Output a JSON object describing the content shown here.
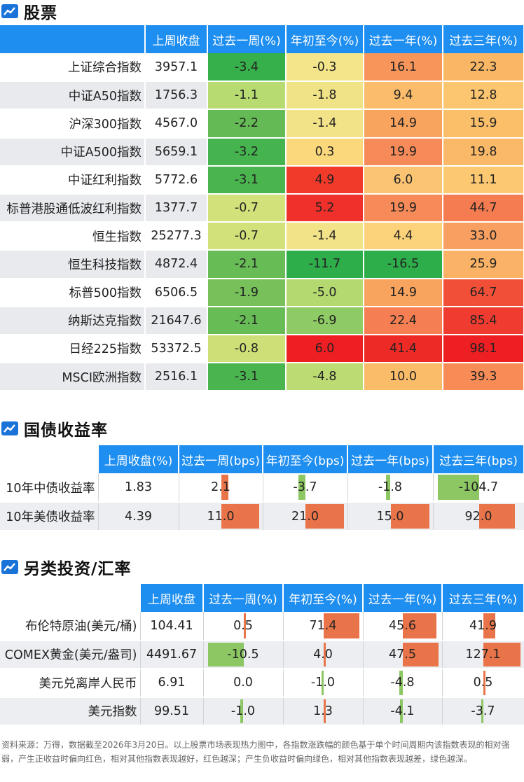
{
  "stocks": {
    "title": "股票",
    "headers": [
      "上周收盘",
      "过去一周(%)",
      "年初至今(%)",
      "过去一年(%)",
      "过去三年(%)"
    ],
    "rows": [
      {
        "name": "上证综合指数",
        "close": "3957.1",
        "w": "-3.4",
        "ytd": "-0.3",
        "y1": "16.1",
        "y3": "22.3",
        "c": [
          "#36b04b",
          "#f5e58a",
          "#f7955b",
          "#f9b766"
        ]
      },
      {
        "name": "中证A50指数",
        "close": "1756.3",
        "w": "-1.1",
        "ytd": "-1.8",
        "y1": "9.4",
        "y3": "12.8",
        "c": [
          "#b7da71",
          "#f0e286",
          "#fbbd6b",
          "#fcc570"
        ]
      },
      {
        "name": "沪深300指数",
        "close": "4567.0",
        "w": "-2.2",
        "ytd": "-1.4",
        "y1": "14.9",
        "y3": "15.9",
        "c": [
          "#64bb55",
          "#f3e388",
          "#f8a35e",
          "#fbbf6a"
        ]
      },
      {
        "name": "中证A500指数",
        "close": "5659.1",
        "w": "-3.2",
        "ytd": "0.3",
        "y1": "19.9",
        "y3": "19.8",
        "c": [
          "#45b44e",
          "#fbd87c",
          "#f68a58",
          "#fab968"
        ]
      },
      {
        "name": "中证红利指数",
        "close": "5772.6",
        "w": "-3.1",
        "ytd": "4.9",
        "y1": "6.0",
        "y3": "11.1",
        "c": [
          "#4ab54f",
          "#f23a2a",
          "#fbc473",
          "#fcc872"
        ]
      },
      {
        "name": "标普港股通低波红利指数",
        "close": "1377.7",
        "w": "-0.7",
        "ytd": "5.2",
        "y1": "19.9",
        "y3": "44.7",
        "c": [
          "#d3e17a",
          "#f0302b",
          "#f68a58",
          "#f57c51"
        ]
      },
      {
        "name": "恒生指数",
        "close": "25277.3",
        "w": "-0.7",
        "ytd": "-1.4",
        "y1": "4.4",
        "y3": "33.0",
        "c": [
          "#d3e17a",
          "#f3e388",
          "#fcd27a",
          "#f8a061"
        ]
      },
      {
        "name": "恒生科技指数",
        "close": "4872.4",
        "w": "-2.1",
        "ytd": "-11.7",
        "y1": "-16.5",
        "y3": "25.9",
        "c": [
          "#68bc56",
          "#2eae4a",
          "#2eae4a",
          "#f9b266"
        ]
      },
      {
        "name": "标普500指数",
        "close": "6506.5",
        "w": "-1.9",
        "ytd": "-5.0",
        "y1": "14.9",
        "y3": "64.7",
        "c": [
          "#77c05a",
          "#b4d970",
          "#f8a35e",
          "#f24f38"
        ]
      },
      {
        "name": "纳斯达克指数",
        "close": "21647.6",
        "w": "-2.1",
        "ytd": "-6.9",
        "y1": "22.4",
        "y3": "85.4",
        "c": [
          "#68bc56",
          "#8fcb64",
          "#f57f52",
          "#f03c30"
        ]
      },
      {
        "name": "日经225指数",
        "close": "53372.5",
        "w": "-0.8",
        "ytd": "6.0",
        "y1": "41.4",
        "y3": "98.1",
        "c": [
          "#cfdf78",
          "#ee1f23",
          "#ee2a27",
          "#ee1f23"
        ]
      },
      {
        "name": "MSCI欧洲指数",
        "close": "2516.1",
        "w": "-3.1",
        "ytd": "-4.8",
        "y1": "10.0",
        "y3": "39.3",
        "c": [
          "#4ab54f",
          "#bcdb72",
          "#fbbc6a",
          "#f78c57"
        ]
      }
    ]
  },
  "bonds": {
    "title": "国债收益率",
    "headers": [
      "上周收盘(%)",
      "过去一周(bps)",
      "年初至今(bps)",
      "过去一年(bps)",
      "过去三年(bps)"
    ],
    "rows": [
      {
        "name": "10年中债收益率",
        "close": "1.83",
        "vals": [
          "2.1",
          "-3.7",
          "-1.8",
          "-104.7"
        ]
      },
      {
        "name": "10年美债收益率",
        "close": "4.39",
        "vals": [
          "11.0",
          "21.0",
          "15.0",
          "92.0"
        ]
      }
    ]
  },
  "alt": {
    "title": "另类投资/汇率",
    "headers": [
      "上周收盘",
      "过去一周(%)",
      "年初至今(%)",
      "过去一年(%)",
      "过去三年(%)"
    ],
    "rows": [
      {
        "name": "布伦特原油(美元/桶)",
        "close": "104.41",
        "vals": [
          "0.5",
          "71.4",
          "45.6",
          "41.9"
        ]
      },
      {
        "name": "COMEX黄金(美元/盎司)",
        "close": "4491.67",
        "vals": [
          "-10.5",
          "4.0",
          "47.5",
          "127.1"
        ]
      },
      {
        "name": "美元兑离岸人民币",
        "close": "6.91",
        "vals": [
          "0.0",
          "-1.0",
          "-4.8",
          "0.5"
        ]
      },
      {
        "name": "美元指数",
        "close": "99.51",
        "vals": [
          "-1.0",
          "1.3",
          "-4.1",
          "-3.7"
        ]
      }
    ]
  },
  "footnote": "资料来源：万得，数据截至2026年3月20日。以上股票市场表现热力图中，各指数涨跌幅的颜色基于单个时间周期内该指数表现的相对强弱，产生正收益时偏向红色，相对其他指数表现越好，红色越深；产生负收益时偏向绿色，相对其他指数表现越差，绿色越深。"
}
